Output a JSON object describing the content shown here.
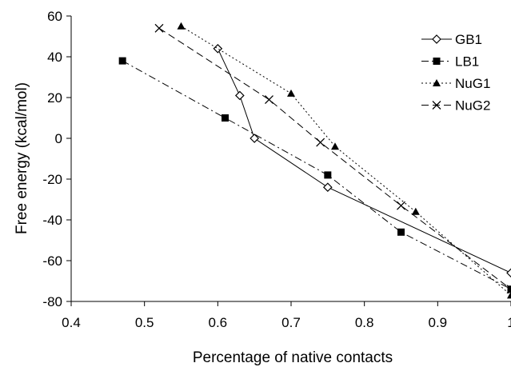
{
  "chart_data": {
    "type": "line",
    "title": "",
    "xlabel": "Percentage of native contacts",
    "ylabel": "Free energy (kcal/mol)",
    "xlim": [
      0.4,
      1.0
    ],
    "ylim": [
      -80,
      60
    ],
    "x_ticks": [
      0.4,
      0.5,
      0.6,
      0.7,
      0.8,
      0.9,
      1.0
    ],
    "x_tick_labels": [
      "0.4",
      "0.5",
      "0.6",
      "0.7",
      "0.8",
      "0.9",
      "1"
    ],
    "y_ticks": [
      -80,
      -60,
      -40,
      -20,
      0,
      20,
      40,
      60
    ],
    "y_tick_labels": [
      "-80",
      "-60",
      "-40",
      "-20",
      "0",
      "20",
      "40",
      "60"
    ],
    "grid": false,
    "legend_position": "top-right",
    "series": [
      {
        "name": "GB1",
        "marker": "diamond-open",
        "dash": "solid",
        "x": [
          0.6,
          0.63,
          0.65,
          0.75,
          1.0
        ],
        "y": [
          44,
          21,
          0,
          -24,
          -66
        ]
      },
      {
        "name": "LB1",
        "marker": "square-filled",
        "dash": "dashdot",
        "x": [
          0.47,
          0.61,
          0.75,
          0.85,
          1.0
        ],
        "y": [
          38,
          10,
          -18,
          -46,
          -74
        ]
      },
      {
        "name": "NuG1",
        "marker": "triangle-filled",
        "dash": "dotted",
        "x": [
          0.55,
          0.7,
          0.76,
          0.87,
          1.0
        ],
        "y": [
          55,
          22,
          -4,
          -36,
          -77
        ]
      },
      {
        "name": "NuG2",
        "marker": "x",
        "dash": "dashed",
        "x": [
          0.52,
          0.67,
          0.74,
          0.85,
          1.0
        ],
        "y": [
          54,
          19,
          -2,
          -33,
          -74
        ]
      }
    ]
  }
}
